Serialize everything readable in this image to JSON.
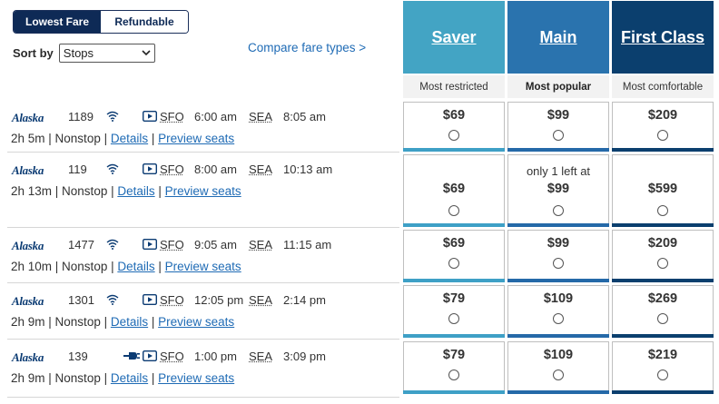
{
  "toggle": {
    "lowest": "Lowest Fare",
    "refundable": "Refundable"
  },
  "sort": {
    "label": "Sort by",
    "value": "Stops"
  },
  "compare_link": "Compare fare types >",
  "fares": [
    {
      "name": "Saver",
      "subtitle": "Most restricted",
      "color": "#43a4c4",
      "bar": "#3ea0c6"
    },
    {
      "name": "Main",
      "subtitle": "Most popular",
      "color": "#2a73ae",
      "bar": "#2569a8"
    },
    {
      "name": "First Class",
      "subtitle": "Most comfortable",
      "color": "#0b3f6e",
      "bar": "#0b3f6e"
    }
  ],
  "flights": [
    {
      "airline": "Alaska",
      "number": "1189",
      "origin": "SFO",
      "depart": "6:00 am",
      "dest": "SEA",
      "arrive": "8:05 am",
      "duration": "2h 5m",
      "stops": "Nonstop",
      "details": "Details",
      "preview": "Preview seats",
      "prices": [
        {
          "note": "",
          "price": "$69"
        },
        {
          "note": "",
          "price": "$99"
        },
        {
          "note": "",
          "price": "$209"
        }
      ]
    },
    {
      "airline": "Alaska",
      "number": "119",
      "origin": "SFO",
      "depart": "8:00 am",
      "dest": "SEA",
      "arrive": "10:13 am",
      "duration": "2h 13m",
      "stops": "Nonstop",
      "details": "Details",
      "preview": "Preview seats",
      "prices": [
        {
          "note": "",
          "price": "$69"
        },
        {
          "note": "only 1 left at",
          "price": "$99"
        },
        {
          "note": "",
          "price": "$599"
        }
      ]
    },
    {
      "airline": "Alaska",
      "number": "1477",
      "origin": "SFO",
      "depart": "9:05 am",
      "dest": "SEA",
      "arrive": "11:15 am",
      "duration": "2h 10m",
      "stops": "Nonstop",
      "details": "Details",
      "preview": "Preview seats",
      "prices": [
        {
          "note": "",
          "price": "$69"
        },
        {
          "note": "",
          "price": "$99"
        },
        {
          "note": "",
          "price": "$209"
        }
      ]
    },
    {
      "airline": "Alaska",
      "number": "1301",
      "origin": "SFO",
      "depart": "12:05 pm",
      "dest": "SEA",
      "arrive": "2:14 pm",
      "duration": "2h 9m",
      "stops": "Nonstop",
      "details": "Details",
      "preview": "Preview seats",
      "prices": [
        {
          "note": "",
          "price": "$79"
        },
        {
          "note": "",
          "price": "$109"
        },
        {
          "note": "",
          "price": "$269"
        }
      ]
    },
    {
      "airline": "Alaska",
      "number": "139",
      "origin": "SFO",
      "depart": "1:00 pm",
      "dest": "SEA",
      "arrive": "3:09 pm",
      "duration": "2h 9m",
      "stops": "Nonstop",
      "details": "Details",
      "preview": "Preview seats",
      "prices": [
        {
          "note": "",
          "price": "$79"
        },
        {
          "note": "",
          "price": "$109"
        },
        {
          "note": "",
          "price": "$219"
        }
      ]
    }
  ]
}
